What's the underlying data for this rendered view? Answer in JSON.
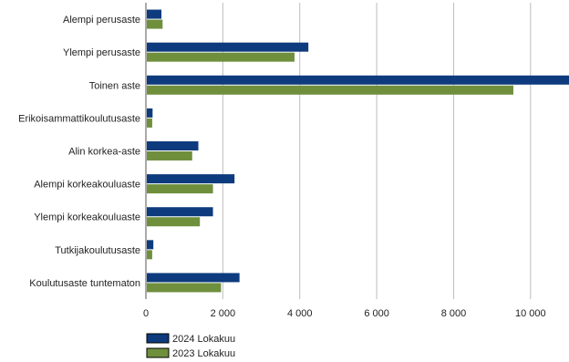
{
  "chart_data": {
    "type": "bar",
    "orientation": "horizontal",
    "categories": [
      "Alempi perusaste",
      "Ylempi perusaste",
      "Toinen aste",
      "Erikoisammattikoulutusaste",
      "Alin korkea-aste",
      "Alempi korkeakouluaste",
      "Ylempi korkeakouluaste",
      "Tutkijakoulutusaste",
      "Koulutusaste tuntematon"
    ],
    "series": [
      {
        "name": "2024 Lokakuu",
        "color": "#0d3b7d",
        "values": [
          380,
          4200,
          11000,
          150,
          1340,
          2280,
          1720,
          170,
          2410
        ]
      },
      {
        "name": "2023 Lokakuu",
        "color": "#6f8f3d",
        "values": [
          410,
          3840,
          9530,
          140,
          1180,
          1720,
          1380,
          140,
          1930
        ]
      }
    ],
    "x_ticks": [
      "0",
      "2 000",
      "4 000",
      "6 000",
      "8 000",
      "10 000"
    ],
    "xlim": [
      0,
      11000
    ],
    "grid": "vertical",
    "legend_position": "bottom-left"
  }
}
